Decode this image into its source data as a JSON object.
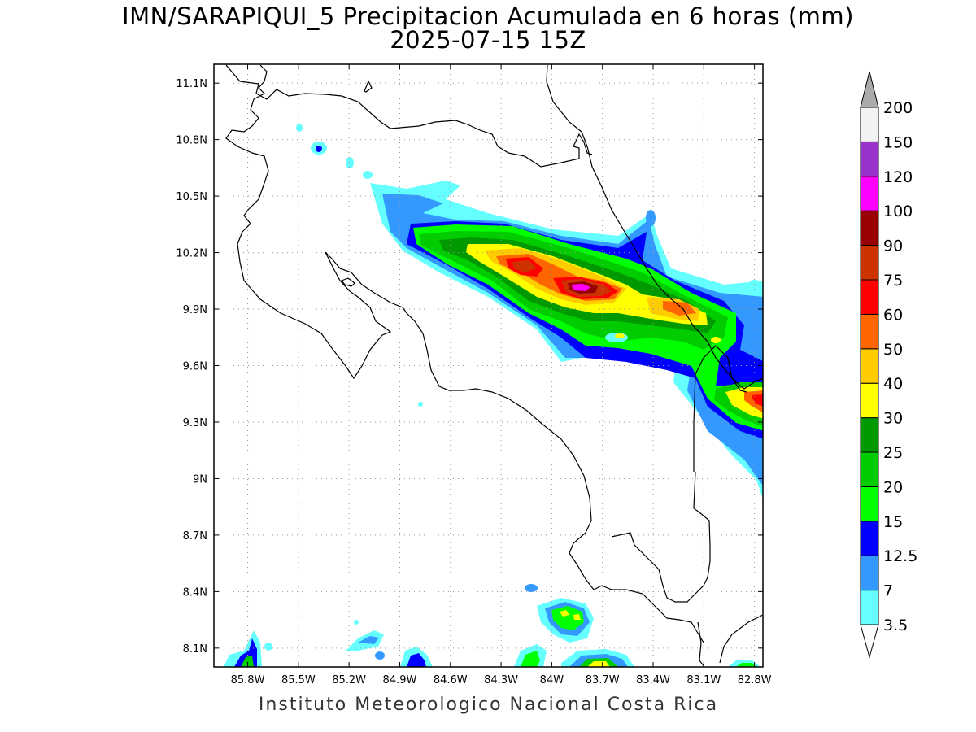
{
  "title": {
    "line1": "IMN/SARAPIQUI_5 Precipitacion Acumulada en 6 horas (mm)",
    "line2": "2025-07-15 15Z"
  },
  "credit": "Instituto Meteorologico Nacional Costa Rica",
  "map": {
    "lon_range": [
      -86.0,
      -82.75
    ],
    "lat_range": [
      8.0,
      11.2
    ],
    "lon_ticks": [
      {
        "value": -85.8,
        "label": "85.8W"
      },
      {
        "value": -85.5,
        "label": "85.5W"
      },
      {
        "value": -85.2,
        "label": "85.2W"
      },
      {
        "value": -84.9,
        "label": "84.9W"
      },
      {
        "value": -84.6,
        "label": "84.6W"
      },
      {
        "value": -84.3,
        "label": "84.3W"
      },
      {
        "value": -84.0,
        "label": "84W"
      },
      {
        "value": -83.7,
        "label": "83.7W"
      },
      {
        "value": -83.4,
        "label": "83.4W"
      },
      {
        "value": -83.1,
        "label": "83.1W"
      },
      {
        "value": -82.8,
        "label": "82.8W"
      }
    ],
    "lat_ticks": [
      {
        "value": 11.1,
        "label": "11.1N"
      },
      {
        "value": 10.8,
        "label": "10.8N"
      },
      {
        "value": 10.5,
        "label": "10.5N"
      },
      {
        "value": 10.2,
        "label": "10.2N"
      },
      {
        "value": 9.9,
        "label": "9.9N"
      },
      {
        "value": 9.6,
        "label": "9.6N"
      },
      {
        "value": 9.3,
        "label": "9.3N"
      },
      {
        "value": 9.0,
        "label": "9N"
      },
      {
        "value": 8.7,
        "label": "8.7N"
      },
      {
        "value": 8.4,
        "label": "8.4N"
      },
      {
        "value": 8.1,
        "label": "8.1N"
      }
    ],
    "grid": "dotted"
  },
  "colorbar": {
    "labels": [
      "3.5",
      "7",
      "12.5",
      "15",
      "20",
      "25",
      "30",
      "40",
      "50",
      "60",
      "75",
      "90",
      "100",
      "120",
      "150",
      "200"
    ],
    "colors": [
      "#66ffff",
      "#3399ff",
      "#0000ff",
      "#00ff00",
      "#00cc00",
      "#009900",
      "#ffff00",
      "#ffcc00",
      "#ff6600",
      "#ff0000",
      "#cc3300",
      "#990000",
      "#ff00ff",
      "#9933cc",
      "#f2f2f2",
      "#aaaaaa"
    ]
  },
  "precip_colors": {
    "c1": "#66ffff",
    "c2": "#3399ff",
    "c3": "#0000ff",
    "c4": "#00ff00",
    "c5": "#00cc00",
    "c6": "#009900",
    "c7": "#ffff00",
    "c8": "#ffcc00",
    "c9": "#ff6600",
    "c10": "#ff0000",
    "c11": "#cc3300",
    "c12": "#990000",
    "c13": "#ff00ff"
  }
}
